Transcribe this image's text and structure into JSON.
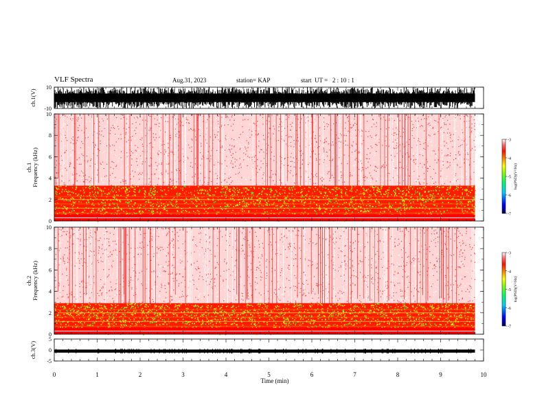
{
  "header": {
    "title": "VLF Spectra",
    "date": "Aug.31, 2023",
    "station": "station= KAP",
    "start": "start  UT =   2 : 10 : 1"
  },
  "colors": {
    "background": "#ffffff",
    "waveform": "#000000",
    "colormap": [
      "#000066",
      "#0000ff",
      "#00ccff",
      "#00ff66",
      "#66ff00",
      "#ffff00",
      "#ffaa00",
      "#ff2a00",
      "#ff0000",
      "#ffffff"
    ]
  },
  "chart_data": [
    {
      "type": "line",
      "panel": "ch1-waveform",
      "ylabel": "ch.1(V)",
      "ylim": [
        -10,
        10
      ],
      "yticks": [
        "10",
        "-10"
      ],
      "xlim": [
        0,
        10
      ],
      "description_of_signal": "dense oscillating waveform spanning about -10 to 10 V"
    },
    {
      "type": "heatmap",
      "panel": "ch1-spectrogram",
      "ylabel": "ch.1\nFrequency (kHz)",
      "xlim": [
        0,
        10
      ],
      "ylim": [
        0,
        10
      ],
      "yticks": [
        "0",
        "2",
        "4",
        "6",
        "8",
        "10"
      ],
      "data_end_min": 9.8,
      "intense_band_top_khz": 3.3,
      "colorbar": {
        "label": "log(PSD)(V²/Hz)",
        "range": [
          -7,
          -3
        ],
        "ticks": [
          "-3",
          "-4",
          "-5",
          "-6",
          "-7"
        ]
      }
    },
    {
      "type": "heatmap",
      "panel": "ch2-spectrogram",
      "ylabel": "ch.2\nFrequency (kHz)",
      "xlim": [
        0,
        10
      ],
      "ylim": [
        0,
        10
      ],
      "yticks": [
        "0",
        "2",
        "4",
        "6",
        "8",
        "10"
      ],
      "data_end_min": 9.8,
      "intense_band_top_khz": 2.9,
      "colorbar": {
        "label": "log(PSD)(V²/Hz)",
        "range": [
          -7,
          -3
        ],
        "ticks": [
          "-3",
          "-4",
          "-5",
          "-6",
          "-7"
        ]
      }
    },
    {
      "type": "line",
      "panel": "ch3-waveform",
      "ylabel": "ch.3(V)",
      "ylim": [
        -5,
        5
      ],
      "yticks": [
        "5",
        "0",
        "-5"
      ],
      "xlim": [
        0,
        10
      ],
      "description_of_signal": "narrow dense band around -0.5 V"
    }
  ],
  "xaxis": {
    "label": "Time (min)",
    "ticks": [
      "0",
      "1",
      "2",
      "3",
      "4",
      "5",
      "6",
      "7",
      "8",
      "9",
      "10"
    ]
  }
}
